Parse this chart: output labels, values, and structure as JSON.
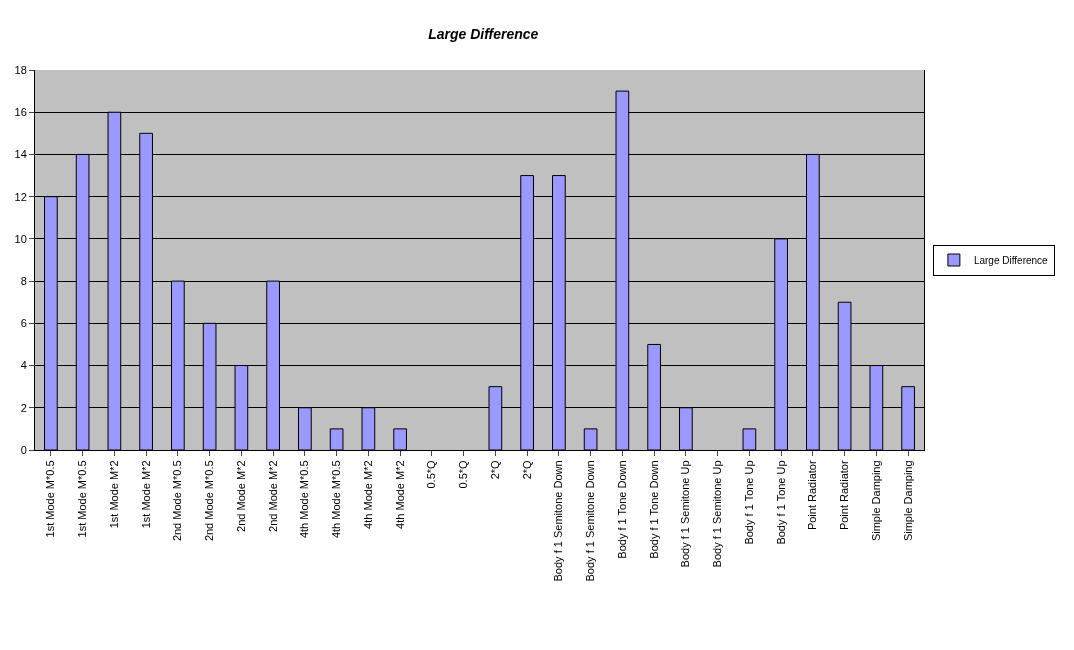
{
  "chart_data": {
    "type": "bar",
    "title": "Large Difference",
    "categories": [
      "1st Mode M*0.5",
      "1st Mode M*0.5",
      "1st Mode M*2",
      "1st Mode M*2",
      "2nd Mode M*0.5",
      "2nd Mode M*0.5",
      "2nd Mode M*2",
      "2nd Mode M*2",
      "4th Mode M*0.5",
      "4th Mode M*0.5",
      "4th Mode M*2",
      "4th Mode M*2",
      "0.5*Q",
      "0.5*Q",
      "2*Q",
      "2*Q",
      "Body f 1 Semitone Down",
      "Body f 1 Semitone Down",
      "Body f 1 Tone Down",
      "Body f 1 Tone Down",
      "Body f 1 Semitone Up",
      "Body f 1 Semitone Up",
      "Body f 1 Tone Up",
      "Body f 1 Tone Up",
      "Point Radiator",
      "Point Radiator",
      "Simple Damping",
      "Simple Damping"
    ],
    "series": [
      {
        "name": "Large Difference",
        "color": "#9999ff",
        "values": [
          12,
          14,
          16,
          15,
          8,
          6,
          4,
          8,
          2,
          1,
          2,
          1,
          0,
          0,
          3,
          13,
          13,
          1,
          17,
          5,
          2,
          0,
          1,
          10,
          14,
          7,
          4,
          3
        ]
      }
    ],
    "ylim": [
      0,
      18
    ],
    "yticks": [
      0,
      2,
      4,
      6,
      8,
      10,
      12,
      14,
      16,
      18
    ],
    "grid": "y",
    "legend": "right"
  }
}
